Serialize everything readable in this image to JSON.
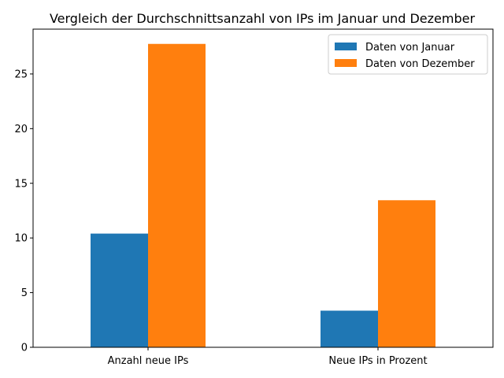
{
  "chart_data": {
    "type": "bar",
    "title": "Vergleich der Durchschnittsanzahl von IPs im Januar und Dezember",
    "xlabel": "",
    "ylabel": "",
    "categories": [
      "Anzahl neue IPs",
      "Neue IPs in Prozent"
    ],
    "series": [
      {
        "name": "Daten von Januar",
        "values": [
          10.4,
          3.35
        ],
        "color": "#1f77b4"
      },
      {
        "name": "Daten von Dezember",
        "values": [
          27.75,
          13.45
        ],
        "color": "#ff7f0e"
      }
    ],
    "ylim": [
      0,
      29.1
    ],
    "yticks": [
      "0",
      "5",
      "10",
      "15",
      "20",
      "25"
    ],
    "grid": false,
    "legend": "top-right"
  }
}
